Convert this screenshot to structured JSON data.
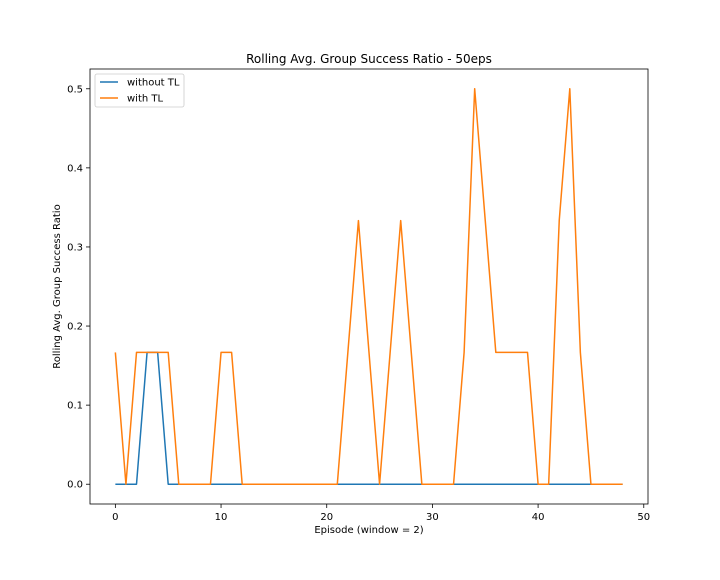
{
  "chart_data": {
    "type": "line",
    "title": "Rolling Avg. Group Success Ratio - 50eps",
    "xlabel": "Episode (window = 2)",
    "ylabel": "Rolling Avg. Group Success Ratio",
    "xlim": [
      -2.4,
      50.4
    ],
    "ylim": [
      -0.025,
      0.525
    ],
    "xticks": [
      0,
      10,
      20,
      30,
      40,
      50
    ],
    "yticks": [
      0.0,
      0.1,
      0.2,
      0.3,
      0.4,
      0.5
    ],
    "ytick_labels": [
      "0.0",
      "0.1",
      "0.2",
      "0.3",
      "0.4",
      "0.5"
    ],
    "grid": false,
    "legend_position": "top-left",
    "x": [
      0,
      1,
      2,
      3,
      4,
      5,
      6,
      7,
      8,
      9,
      10,
      11,
      12,
      13,
      14,
      15,
      16,
      17,
      18,
      19,
      20,
      21,
      22,
      23,
      24,
      25,
      26,
      27,
      28,
      29,
      30,
      31,
      32,
      33,
      34,
      35,
      36,
      37,
      38,
      39,
      40,
      41,
      42,
      43,
      44,
      45,
      46,
      47,
      48
    ],
    "series": [
      {
        "name": "without TL",
        "color": "#1f77b4",
        "values": [
          0,
          0,
          0,
          0.1667,
          0.1667,
          0,
          0,
          0,
          0,
          0,
          0,
          0,
          0,
          0,
          0,
          0,
          0,
          0,
          0,
          0,
          0,
          0,
          0,
          0,
          0,
          0,
          0,
          0,
          0,
          0,
          0,
          0,
          0,
          0,
          0,
          0,
          0,
          0,
          0,
          0,
          0,
          0,
          0,
          0,
          0,
          0,
          0,
          0,
          0
        ]
      },
      {
        "name": "with TL",
        "color": "#ff7f0e",
        "values": [
          0.1667,
          0,
          0.1667,
          0.1667,
          0.1667,
          0.1667,
          0,
          0,
          0,
          0,
          0.1667,
          0.1667,
          0,
          0,
          0,
          0,
          0,
          0,
          0,
          0,
          0,
          0,
          0.1667,
          0.3333,
          0.1667,
          0,
          0.1667,
          0.3333,
          0.1667,
          0,
          0,
          0,
          0,
          0.1667,
          0.5,
          0.3333,
          0.1667,
          0.1667,
          0.1667,
          0.1667,
          0,
          0,
          0.3333,
          0.5,
          0.1667,
          0,
          0,
          0,
          0
        ]
      }
    ]
  }
}
